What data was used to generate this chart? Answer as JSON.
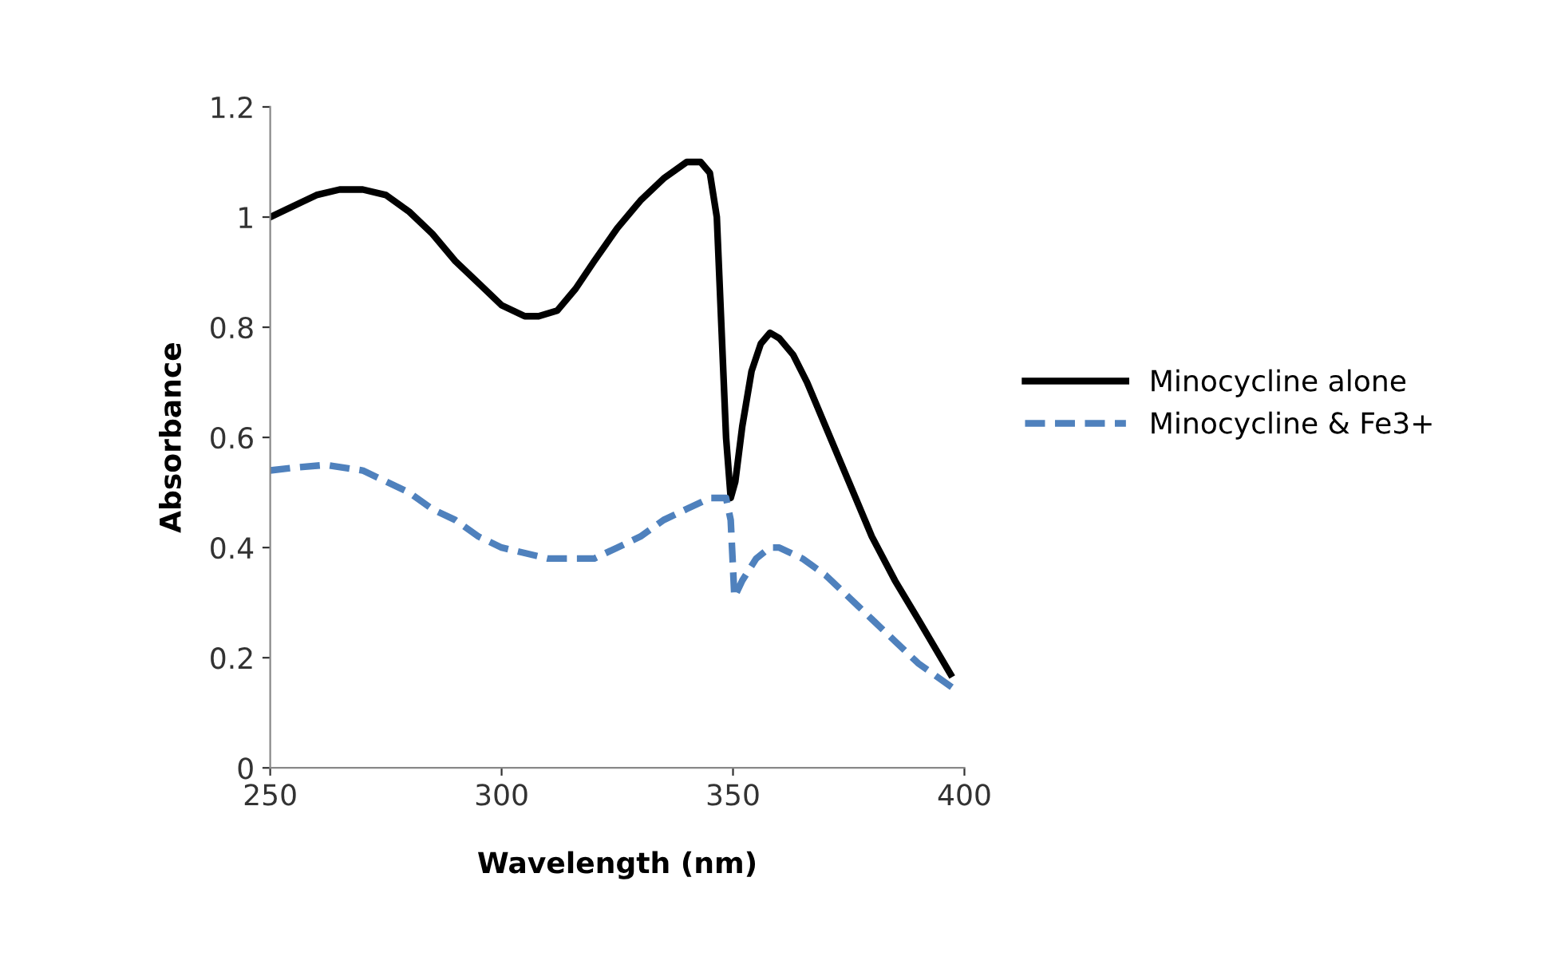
{
  "chart_data": {
    "type": "line",
    "xlabel": "Wavelength (nm)",
    "ylabel": "Absorbance",
    "xlim": [
      250,
      400
    ],
    "xticks": [
      250,
      300,
      350,
      400
    ],
    "ylim": [
      0,
      1.2
    ],
    "yticks": [
      0,
      0.2,
      0.4,
      0.6,
      0.8,
      1,
      1.2
    ],
    "grid": false,
    "legend": "right",
    "marker": "none",
    "series": [
      {
        "name": "Minocycline alone",
        "color": "#000000",
        "line_style": "solid",
        "x": [
          250,
          255,
          260,
          265,
          270,
          275,
          280,
          285,
          290,
          295,
          300,
          305,
          308,
          312,
          316,
          320,
          325,
          330,
          335,
          340,
          343,
          345,
          346.5,
          347.5,
          348.5,
          349.5,
          350.5,
          352,
          354,
          356,
          358,
          360,
          363,
          366,
          370,
          375,
          380,
          385,
          390,
          397
        ],
        "values": [
          1.0,
          1.02,
          1.04,
          1.05,
          1.05,
          1.04,
          1.01,
          0.97,
          0.92,
          0.88,
          0.84,
          0.82,
          0.82,
          0.83,
          0.87,
          0.92,
          0.98,
          1.03,
          1.07,
          1.1,
          1.1,
          1.08,
          1.0,
          0.8,
          0.6,
          0.49,
          0.52,
          0.62,
          0.72,
          0.77,
          0.79,
          0.78,
          0.75,
          0.7,
          0.62,
          0.52,
          0.42,
          0.34,
          0.27,
          0.17
        ]
      },
      {
        "name": "Minocycline & Fe3+",
        "color": "#4f81bd",
        "line_style": "dashed",
        "x": [
          250,
          255,
          262,
          270,
          275,
          280,
          285,
          290,
          295,
          300,
          305,
          310,
          315,
          320,
          325,
          330,
          335,
          340,
          345,
          348.5,
          349.5,
          350.3,
          352,
          355,
          358,
          360,
          365,
          370,
          375,
          380,
          385,
          390,
          397.5
        ],
        "values": [
          0.54,
          0.545,
          0.55,
          0.54,
          0.52,
          0.5,
          0.47,
          0.45,
          0.42,
          0.4,
          0.39,
          0.38,
          0.38,
          0.38,
          0.4,
          0.42,
          0.45,
          0.47,
          0.49,
          0.49,
          0.45,
          0.31,
          0.34,
          0.38,
          0.4,
          0.4,
          0.38,
          0.35,
          0.31,
          0.27,
          0.23,
          0.19,
          0.145
        ]
      }
    ]
  }
}
